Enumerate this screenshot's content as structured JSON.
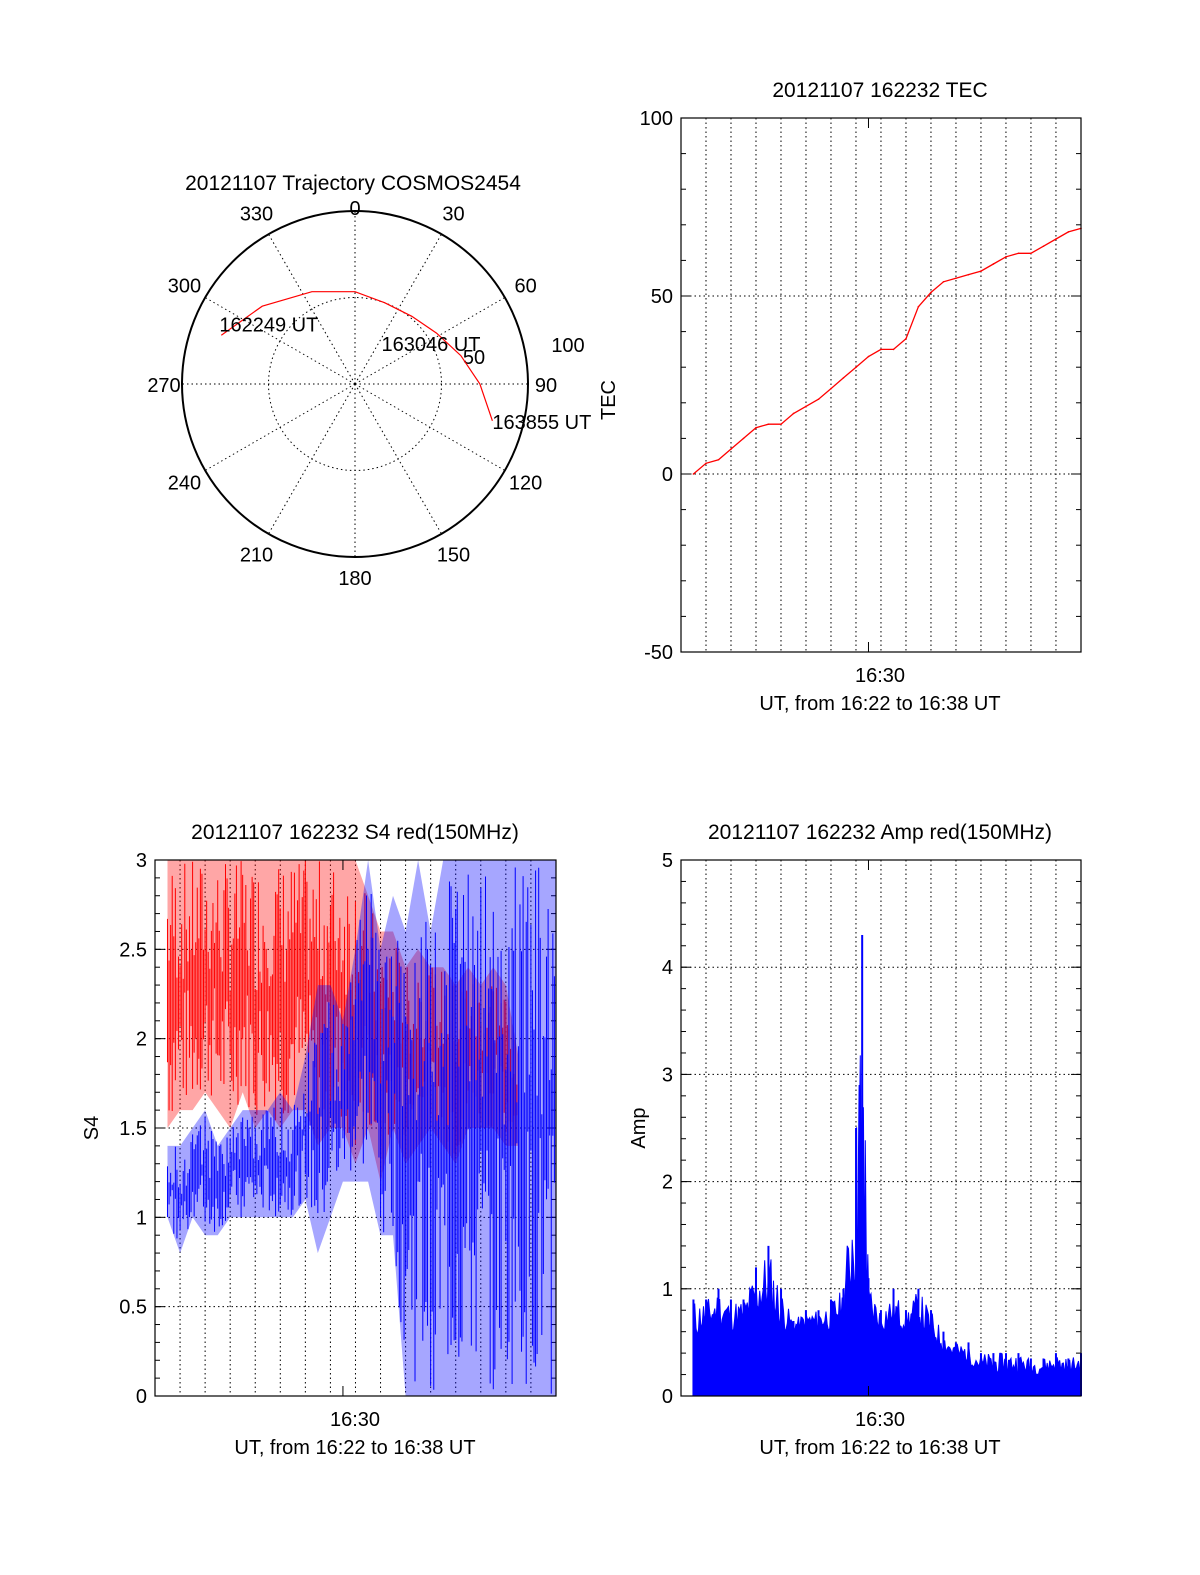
{
  "colors": {
    "red": "#ff0000",
    "blue": "#0000ff",
    "axis": "#000000"
  },
  "chart_data": [
    {
      "type": "polar",
      "title": "20121107 Trajectory COSMOS2454",
      "azimuth_labels": [
        "0",
        "30",
        "60",
        "90",
        "120",
        "150",
        "180",
        "210",
        "240",
        "270",
        "300",
        "330"
      ],
      "elevation_labels": [
        "50",
        "100"
      ],
      "track": {
        "color": "#ff0000",
        "points": [
          {
            "az": -70,
            "el": 16
          },
          {
            "az": -50,
            "el": 27
          },
          {
            "az": -25,
            "el": 37
          },
          {
            "az": 0,
            "el": 42
          },
          {
            "az": 20,
            "el": 45
          },
          {
            "az": 40,
            "el": 44
          },
          {
            "az": 58,
            "el": 40
          },
          {
            "az": 75,
            "el": 33
          },
          {
            "az": 90,
            "el": 25
          },
          {
            "az": 105,
            "el": 16
          }
        ]
      },
      "annotations": [
        {
          "text": "162249 UT",
          "az": -70,
          "el": 16
        },
        {
          "text": "163046 UT",
          "az": 58,
          "el": 40
        },
        {
          "text": "163855 UT",
          "az": 105,
          "el": 16
        }
      ]
    },
    {
      "type": "line",
      "title": "20121107 162232 TEC",
      "xlabel": "UT, from 16:22 to 16:38 UT",
      "ylabel": "TEC",
      "xlim": [
        16.375,
        16.6417
      ],
      "ylim": [
        -50,
        100
      ],
      "yticks": [
        -50,
        0,
        50,
        100
      ],
      "ytick_labels": [
        "-50",
        "0",
        "50",
        "100"
      ],
      "xticks": [
        16.5
      ],
      "xtick_labels": [
        "16:30"
      ],
      "grid": true,
      "series": [
        {
          "color": "#ff0000",
          "x": [
            16.3833,
            16.3917,
            16.4,
            16.4083,
            16.4167,
            16.425,
            16.4333,
            16.4417,
            16.45,
            16.4583,
            16.4667,
            16.475,
            16.4833,
            16.4917,
            16.5,
            16.5083,
            16.5167,
            16.525,
            16.5333,
            16.5417,
            16.55,
            16.5583,
            16.5667,
            16.575,
            16.5833,
            16.5917,
            16.6,
            16.6083,
            16.6167,
            16.625,
            16.6333,
            16.6417
          ],
          "y": [
            0,
            3,
            4,
            7,
            10,
            13,
            14,
            14,
            17,
            19,
            21,
            24,
            27,
            30,
            33,
            35,
            35,
            38,
            47,
            51,
            54,
            55,
            56,
            57,
            59,
            61,
            62,
            62,
            64,
            66,
            68,
            69
          ]
        }
      ]
    },
    {
      "type": "line",
      "title": "20121107 162232 S4 red(150MHz)",
      "xlabel": "UT, from 16:22 to 16:38 UT",
      "ylabel": "S4",
      "xlim": [
        16.375,
        16.6417
      ],
      "ylim": [
        0,
        3
      ],
      "yticks": [
        0,
        0.5,
        1,
        1.5,
        2,
        2.5,
        3
      ],
      "ytick_labels": [
        "0",
        "0.5",
        "1",
        "1.5",
        "2",
        "2.5",
        "3"
      ],
      "xticks": [
        16.5
      ],
      "xtick_labels": [
        "16:30"
      ],
      "grid": true,
      "series": [
        {
          "color": "#ff0000",
          "x": [
            16.3833,
            16.3917,
            16.4,
            16.4083,
            16.4167,
            16.425,
            16.4333,
            16.4417,
            16.45,
            16.4583,
            16.4667,
            16.475,
            16.4833,
            16.4917,
            16.5,
            16.5083,
            16.5167,
            16.525,
            16.5333,
            16.5417,
            16.55,
            16.5583,
            16.5667,
            16.575,
            16.5833,
            16.5917,
            16.6,
            16.6083,
            16.6167
          ],
          "y": [
            2.2,
            2.4,
            2.1,
            2.5,
            2.3,
            2.2,
            2.4,
            2.0,
            2.3,
            2.1,
            2.4,
            2.2,
            2.0,
            2.2,
            2.1,
            1.9,
            2.2,
            1.9,
            2.0,
            1.9,
            1.9,
            2.1,
            1.8,
            1.9,
            2.0,
            2.0,
            1.9,
            1.9,
            1.8
          ],
          "y_min": [
            1.5,
            1.6,
            1.6,
            1.7,
            1.6,
            1.5,
            1.7,
            1.5,
            1.6,
            1.5,
            1.6,
            1.6,
            1.4,
            1.5,
            1.5,
            1.3,
            1.5,
            1.2,
            1.5,
            1.3,
            1.4,
            1.5,
            1.4,
            1.3,
            1.5,
            1.5,
            1.5,
            1.4,
            1.4
          ],
          "y_max": [
            3.0,
            3.0,
            3.0,
            3.0,
            3.0,
            3.0,
            3.0,
            3.0,
            3.0,
            3.0,
            3.0,
            3.0,
            3.0,
            3.0,
            3.0,
            3.0,
            2.8,
            2.6,
            2.6,
            2.4,
            2.5,
            2.4,
            2.4,
            2.3,
            2.4,
            2.3,
            2.4,
            2.3,
            1.9
          ]
        },
        {
          "color": "#0000ff",
          "x": [
            16.3833,
            16.3917,
            16.4,
            16.4083,
            16.4167,
            16.425,
            16.4333,
            16.4417,
            16.45,
            16.4583,
            16.4667,
            16.475,
            16.4833,
            16.4917,
            16.5,
            16.5083,
            16.5167,
            16.525,
            16.5333,
            16.5417,
            16.55,
            16.5583,
            16.5667,
            16.575,
            16.5833,
            16.5917,
            16.6,
            16.6083,
            16.6167,
            16.625,
            16.6333,
            16.6417
          ],
          "y": [
            1.2,
            1.2,
            1.3,
            1.2,
            1.2,
            1.25,
            1.3,
            1.3,
            1.3,
            1.3,
            1.3,
            1.4,
            1.4,
            1.5,
            1.6,
            1.6,
            1.7,
            1.6,
            1.7,
            1.6,
            1.7,
            1.8,
            1.8,
            1.8,
            1.9,
            1.9,
            1.9,
            2.0,
            2.0,
            2.0,
            2.0,
            2.0
          ],
          "y_min": [
            1.0,
            0.8,
            1.0,
            0.9,
            0.9,
            1.0,
            1.0,
            1.0,
            1.0,
            1.0,
            1.0,
            1.1,
            0.8,
            1.0,
            1.2,
            1.2,
            1.2,
            0.9,
            0.9,
            0.0,
            0.0,
            0.0,
            0.0,
            0.0,
            0.0,
            0.0,
            0.0,
            0.0,
            0.0,
            0.0,
            0.0,
            0.0
          ],
          "y_max": [
            1.4,
            1.4,
            1.5,
            1.6,
            1.4,
            1.5,
            1.6,
            1.6,
            1.6,
            1.7,
            1.6,
            1.9,
            2.3,
            2.3,
            2.1,
            2.5,
            3.0,
            2.5,
            2.8,
            2.6,
            3.0,
            2.6,
            3.0,
            3.0,
            3.0,
            3.0,
            3.0,
            3.0,
            3.0,
            3.0,
            3.0,
            3.0
          ]
        }
      ]
    },
    {
      "type": "line",
      "title": "20121107 162232 Amp red(150MHz)",
      "xlabel": "UT, from 16:22 to 16:38 UT",
      "ylabel": "Amp",
      "xlim": [
        16.375,
        16.6417
      ],
      "ylim": [
        0,
        5
      ],
      "yticks": [
        0,
        1,
        2,
        3,
        4,
        5
      ],
      "ytick_labels": [
        "0",
        "1",
        "2",
        "3",
        "4",
        "5"
      ],
      "xticks": [
        16.5
      ],
      "xtick_labels": [
        "16:30"
      ],
      "grid": true,
      "series": [
        {
          "color": "#0000ff",
          "x": [
            16.3833,
            16.3917,
            16.4,
            16.4083,
            16.4167,
            16.425,
            16.4333,
            16.4417,
            16.45,
            16.4583,
            16.4667,
            16.475,
            16.4833,
            16.4917,
            16.4958,
            16.5,
            16.5083,
            16.5167,
            16.525,
            16.5333,
            16.5417,
            16.55,
            16.5583,
            16.5667,
            16.575,
            16.5833,
            16.5917,
            16.6,
            16.6083,
            16.6167,
            16.625,
            16.6333,
            16.6417
          ],
          "y": [
            0.9,
            0.9,
            1.0,
            0.9,
            0.9,
            1.2,
            1.4,
            1.0,
            0.7,
            0.8,
            0.8,
            0.9,
            1.0,
            2.5,
            4.3,
            1.1,
            0.8,
            1.0,
            0.8,
            1.0,
            0.8,
            0.6,
            0.5,
            0.5,
            0.4,
            0.4,
            0.4,
            0.4,
            0.35,
            0.35,
            0.4,
            0.35,
            0.4
          ],
          "y_min": [
            0.5,
            0.6,
            0.6,
            0.6,
            0.6,
            0.7,
            0.7,
            0.6,
            0.6,
            0.6,
            0.6,
            0.6,
            0.7,
            0.9,
            1.0,
            0.6,
            0.6,
            0.6,
            0.6,
            0.6,
            0.5,
            0.4,
            0.3,
            0.3,
            0.2,
            0.2,
            0.2,
            0.2,
            0.2,
            0.2,
            0.2,
            0.2,
            0.2
          ]
        }
      ]
    }
  ]
}
